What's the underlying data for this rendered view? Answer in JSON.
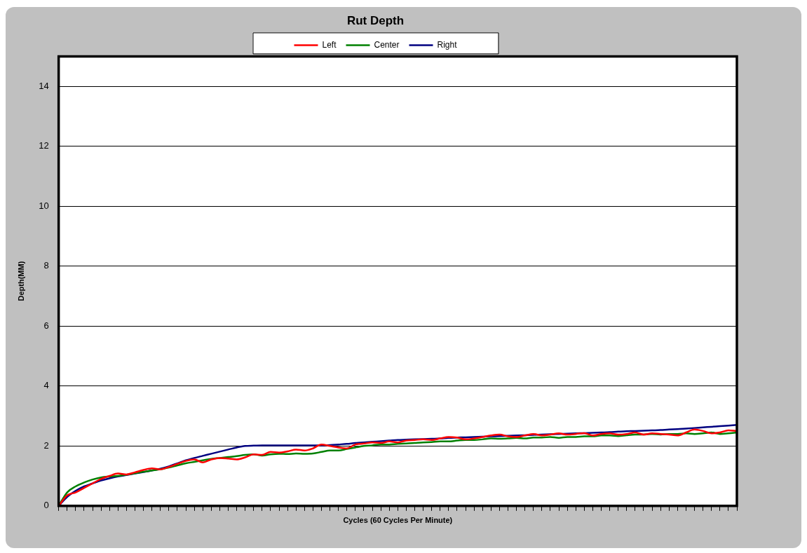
{
  "chart_data": {
    "type": "line",
    "title": "Rut Depth",
    "xlabel": "Cycles (60 Cycles Per Minute)",
    "ylabel": "Depth(MM)",
    "categories": [
      null,
      null,
      null,
      null,
      null,
      null,
      null,
      null,
      null,
      null,
      null,
      null,
      null,
      null,
      null,
      null,
      null,
      null,
      null,
      null,
      null,
      null,
      null,
      null,
      null,
      null,
      null,
      null,
      null,
      null,
      null,
      null,
      null,
      null,
      null,
      null,
      null,
      null,
      null,
      null,
      null,
      null,
      null,
      null,
      null,
      null,
      null,
      null,
      null,
      null,
      null,
      null,
      null,
      null,
      null,
      null,
      null,
      null,
      null,
      null,
      null,
      null,
      null,
      null,
      null,
      null,
      null,
      null,
      null,
      null,
      null,
      null,
      null,
      null,
      null,
      null,
      null,
      null,
      null,
      null,
      null
    ],
    "series": [
      {
        "name": "Left",
        "color": "#ff0000",
        "values": [
          0,
          0.35,
          0.45,
          0.6,
          0.75,
          0.9,
          1.0,
          1.08,
          1.05,
          1.12,
          1.2,
          1.25,
          1.22,
          1.3,
          1.4,
          1.5,
          1.55,
          1.45,
          1.55,
          1.6,
          1.58,
          1.55,
          1.62,
          1.72,
          1.7,
          1.8,
          1.78,
          1.82,
          1.88,
          1.85,
          1.92,
          2.05,
          2.0,
          1.95,
          1.92,
          2.05,
          2.08,
          2.12,
          2.1,
          2.15,
          2.12,
          2.18,
          2.2,
          2.22,
          2.2,
          2.25,
          2.3,
          2.28,
          2.22,
          2.25,
          2.3,
          2.35,
          2.38,
          2.32,
          2.3,
          2.35,
          2.4,
          2.35,
          2.38,
          2.42,
          2.38,
          2.4,
          2.43,
          2.35,
          2.4,
          2.42,
          2.38,
          2.4,
          2.45,
          2.38,
          2.42,
          2.4,
          2.38,
          2.35,
          2.45,
          2.55,
          2.5,
          2.42,
          2.45,
          2.52,
          2.5
        ]
      },
      {
        "name": "Center",
        "color": "#008000",
        "values": [
          0,
          0.45,
          0.65,
          0.78,
          0.88,
          0.95,
          0.98,
          1.0,
          1.04,
          1.09,
          1.14,
          1.18,
          1.22,
          1.28,
          1.35,
          1.42,
          1.47,
          1.52,
          1.57,
          1.6,
          1.63,
          1.66,
          1.7,
          1.72,
          1.68,
          1.72,
          1.74,
          1.73,
          1.75,
          1.74,
          1.75,
          1.8,
          1.85,
          1.85,
          1.9,
          1.95,
          2.0,
          2.02,
          2.05,
          2.05,
          2.07,
          2.08,
          2.1,
          2.12,
          2.13,
          2.15,
          2.15,
          2.18,
          2.2,
          2.2,
          2.22,
          2.25,
          2.24,
          2.25,
          2.27,
          2.25,
          2.28,
          2.28,
          2.3,
          2.27,
          2.3,
          2.3,
          2.32,
          2.32,
          2.35,
          2.35,
          2.33,
          2.36,
          2.38,
          2.38,
          2.4,
          2.38,
          2.4,
          2.4,
          2.42,
          2.4,
          2.42,
          2.45,
          2.4,
          2.42,
          2.45
        ]
      },
      {
        "name": "Right",
        "color": "#000080",
        "values": [
          0,
          0.3,
          0.5,
          0.65,
          0.75,
          0.85,
          0.92,
          0.98,
          1.03,
          1.08,
          1.13,
          1.18,
          1.24,
          1.32,
          1.42,
          1.52,
          1.6,
          1.67,
          1.74,
          1.81,
          1.88,
          1.95,
          2.0,
          2.01,
          2.02,
          2.02,
          2.02,
          2.02,
          2.02,
          2.02,
          2.02,
          2.02,
          2.03,
          2.05,
          2.07,
          2.1,
          2.12,
          2.14,
          2.16,
          2.18,
          2.2,
          2.21,
          2.22,
          2.23,
          2.24,
          2.25,
          2.27,
          2.28,
          2.29,
          2.3,
          2.31,
          2.32,
          2.33,
          2.34,
          2.35,
          2.36,
          2.37,
          2.38,
          2.39,
          2.4,
          2.41,
          2.42,
          2.43,
          2.44,
          2.45,
          2.46,
          2.48,
          2.49,
          2.5,
          2.51,
          2.52,
          2.53,
          2.55,
          2.56,
          2.58,
          2.6,
          2.62,
          2.64,
          2.66,
          2.68,
          2.7
        ]
      }
    ],
    "ylim": [
      0,
      15
    ],
    "yticks": [
      0,
      2,
      4,
      6,
      8,
      10,
      12,
      14
    ],
    "grid": "y",
    "legend": "top",
    "tick_labels": "y",
    "marker": "none",
    "line_style": "solid"
  }
}
